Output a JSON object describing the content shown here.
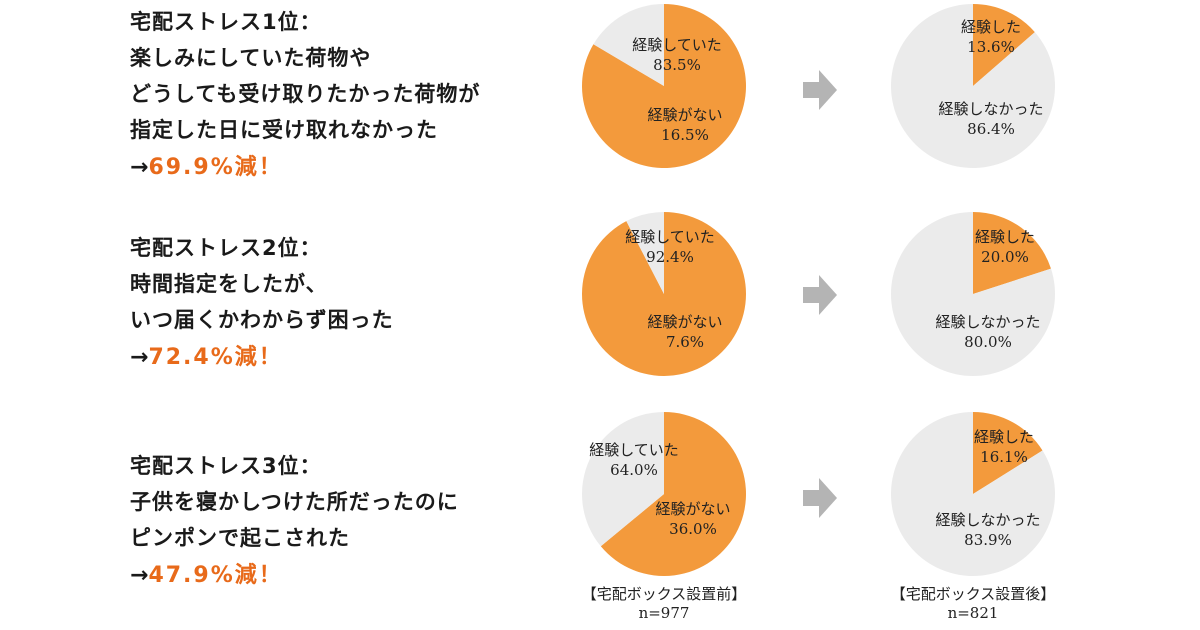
{
  "colors": {
    "orange": "#f39a3c",
    "gray": "#ebebeb",
    "accent": "#e86a1a",
    "arrow": "#b4b4b4"
  },
  "rows": [
    {
      "lines": [
        "宅配ストレス1位：",
        "楽しみにしていた荷物や",
        "どうしても受け取りたかった荷物が",
        "指定した日に受け取れなかった"
      ],
      "arrow_prefix": "→",
      "result_value": "69.9%",
      "result_suffix": "減！"
    },
    {
      "lines": [
        "宅配ストレス2位：",
        "時間指定をしたが、",
        "いつ届くかわからず困った"
      ],
      "arrow_prefix": "→",
      "result_value": "72.4%",
      "result_suffix": "減！"
    },
    {
      "lines": [
        "宅配ストレス3位：",
        "子供を寝かしつけた所だったのに",
        "ピンポンで起こされた"
      ],
      "arrow_prefix": "→",
      "result_value": "47.9%",
      "result_suffix": "減！"
    }
  ],
  "chart_data": [
    {
      "type": "pie",
      "slices": [
        {
          "label": "経験していた",
          "value": 83.5,
          "value_label": "83.5%",
          "color": "#f39a3c"
        },
        {
          "label": "経験がない",
          "value": 16.5,
          "value_label": "16.5%",
          "color": "#ebebeb"
        }
      ]
    },
    {
      "type": "pie",
      "slices": [
        {
          "label": "経験した",
          "value": 13.6,
          "value_label": "13.6%",
          "color": "#f39a3c"
        },
        {
          "label": "経験しなかった",
          "value": 86.4,
          "value_label": "86.4%",
          "color": "#ebebeb"
        }
      ]
    },
    {
      "type": "pie",
      "slices": [
        {
          "label": "経験していた",
          "value": 92.4,
          "value_label": "92.4%",
          "color": "#f39a3c"
        },
        {
          "label": "経験がない",
          "value": 7.6,
          "value_label": "7.6%",
          "color": "#ebebeb"
        }
      ]
    },
    {
      "type": "pie",
      "slices": [
        {
          "label": "経験した",
          "value": 20.0,
          "value_label": "20.0%",
          "color": "#f39a3c"
        },
        {
          "label": "経験しなかった",
          "value": 80.0,
          "value_label": "80.0%",
          "color": "#ebebeb"
        }
      ]
    },
    {
      "type": "pie",
      "slices": [
        {
          "label": "経験していた",
          "value": 64.0,
          "value_label": "64.0%",
          "color": "#f39a3c"
        },
        {
          "label": "経験がない",
          "value": 36.0,
          "value_label": "36.0%",
          "color": "#ebebeb"
        }
      ]
    },
    {
      "type": "pie",
      "slices": [
        {
          "label": "経験した",
          "value": 16.1,
          "value_label": "16.1%",
          "color": "#f39a3c"
        },
        {
          "label": "経験しなかった",
          "value": 83.9,
          "value_label": "83.9%",
          "color": "#ebebeb"
        }
      ]
    }
  ],
  "footers": {
    "before": {
      "label": "【宅配ボックス設置前】",
      "n": "n=977"
    },
    "after": {
      "label": "【宅配ボックス設置後】",
      "n": "n=821"
    }
  }
}
